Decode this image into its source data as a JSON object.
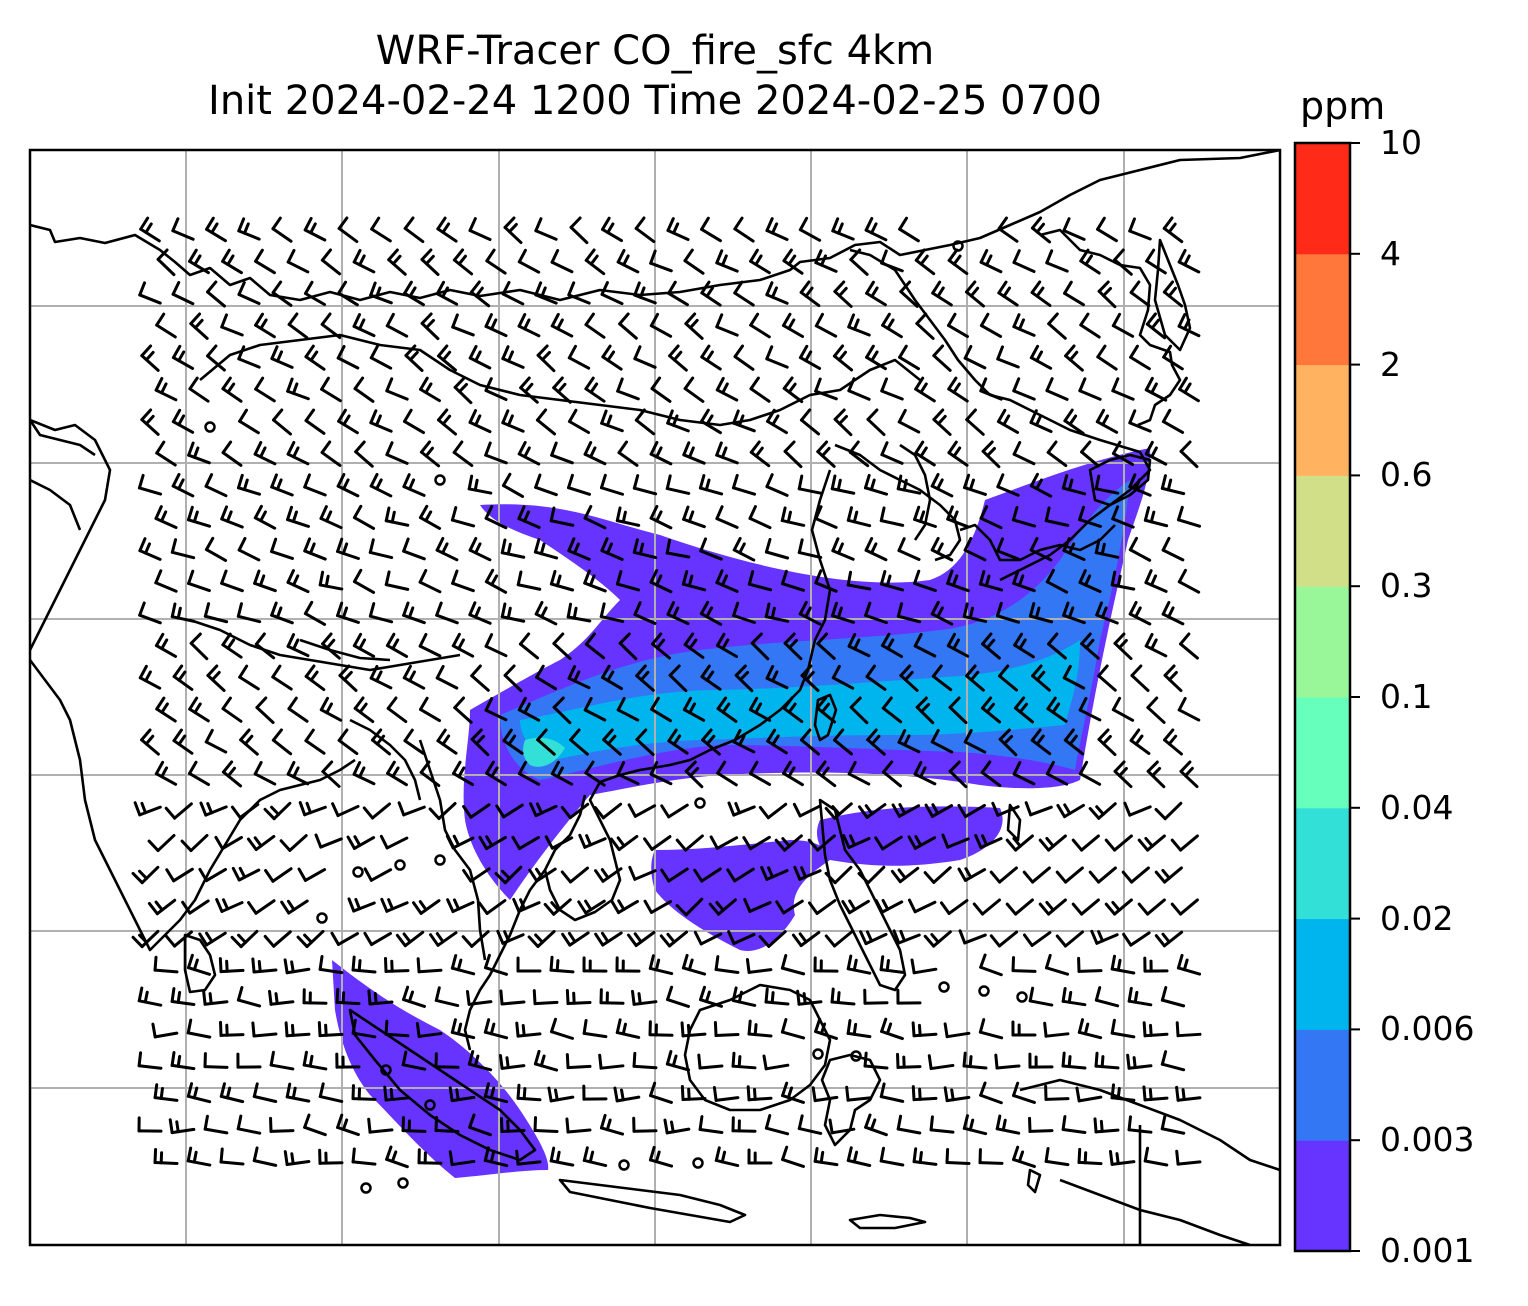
{
  "title": {
    "line1": "WRF-Tracer CO_fire_sfc 4km",
    "line2": "Init 2024-02-24 1200 Time 2024-02-25 0700"
  },
  "colorbar": {
    "unit": "ppm",
    "levels": [
      "0.001",
      "0.003",
      "0.006",
      "0.02",
      "0.04",
      "0.1",
      "0.3",
      "0.6",
      "2",
      "4",
      "10"
    ],
    "colors": [
      "#6633ff",
      "#3377f5",
      "#00b4ee",
      "#33e0d8",
      "#66ffbb",
      "#99f799",
      "#d1e088",
      "#ffb360",
      "#ff773a",
      "#ff2a18"
    ]
  },
  "map": {
    "plume_colors": {
      "faint": "#6633ff",
      "low": "#3377f5",
      "mid": "#00b4ee",
      "high": "#33e0d8"
    },
    "gridline_color": "#b0b0b0",
    "coastline_color": "#000000",
    "wind_barbs": true
  }
}
